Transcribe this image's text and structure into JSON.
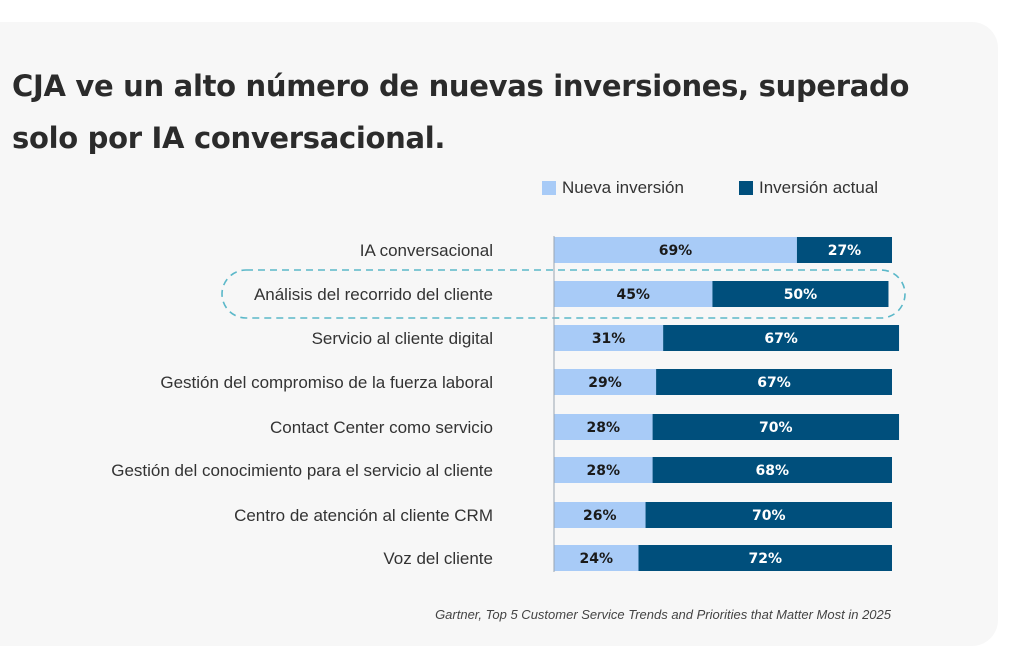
{
  "title": "CJA ve un alto número de nuevas inversiones, superado solo por IA conversacional.",
  "source": "Gartner, Top 5 Customer Service Trends and Priorities that Matter Most in 2025",
  "colors": {
    "nueva": "#a8cbf7",
    "actual": "#004f7c",
    "highlight": "#5bb8c9",
    "background": "#f7f7f7"
  },
  "legend": {
    "nueva": "Nueva inversión",
    "actual": "Inversión actual"
  },
  "chart_data": {
    "type": "bar",
    "orientation": "horizontal",
    "stacked": true,
    "categories": [
      "IA conversacional",
      "Análisis del recorrido del cliente",
      "Servicio al cliente digital",
      "Gestión del compromiso de la fuerza laboral",
      "Contact Center como servicio",
      "Gestión del conocimiento para el servicio al cliente",
      "Centro de atención al cliente CRM",
      "Voz del cliente"
    ],
    "series": [
      {
        "name": "Nueva inversión",
        "values": [
          69,
          45,
          31,
          29,
          28,
          28,
          26,
          24
        ],
        "labels": [
          "69%",
          "45%",
          "31%",
          "29%",
          "28%",
          "28%",
          "26%",
          "24%"
        ]
      },
      {
        "name": "Inversión actual",
        "values": [
          27,
          50,
          67,
          67,
          70,
          68,
          70,
          72
        ],
        "labels": [
          "27%",
          "50%",
          "67%",
          "67%",
          "70%",
          "68%",
          "70%",
          "72%"
        ]
      }
    ],
    "highlighted_category": "Análisis del recorrido del cliente",
    "grid": false,
    "legend_position": "top-right"
  }
}
